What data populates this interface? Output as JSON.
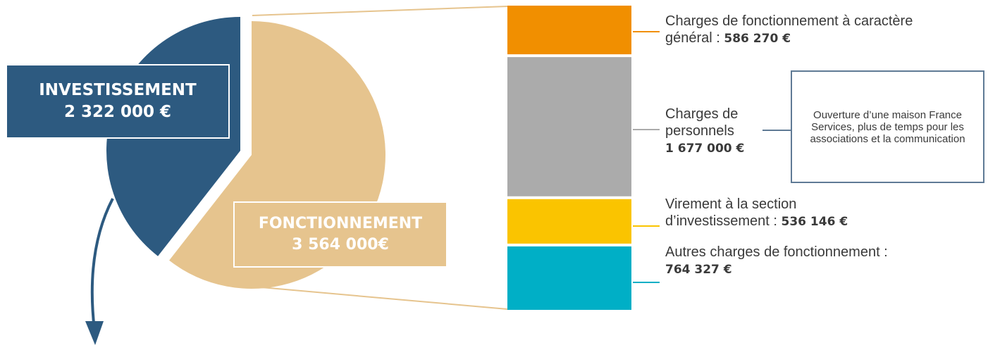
{
  "chart_data": {
    "type": "pie",
    "slices": [
      {
        "label": "INVESTISSEMENT",
        "value_text": "2 322 000 €",
        "value": 2322000,
        "color": "#2d5a80"
      },
      {
        "label": "FONCTIONNEMENT",
        "value_text": "3 564 000€",
        "value": 3564000,
        "color": "#e6c48e"
      }
    ],
    "breakdown": {
      "of": "FONCTIONNEMENT",
      "type": "stacked-bar",
      "segments": [
        {
          "text": "Charges de fonctionnement à caractère général : ",
          "value_text": "586 270 €",
          "value": 586270,
          "color": "#f18f00"
        },
        {
          "text": "Charges de personnels",
          "value_text": "1 677 000 €",
          "value": 1677000,
          "color": "#ababab"
        },
        {
          "text": "Virement à la section d’investissement : ",
          "value_text": "536 146 €",
          "value": 536146,
          "color": "#fac400"
        },
        {
          "text": "Autres charges de fonctionnement : ",
          "value_text": "764 327 €",
          "value": 764327,
          "color": "#00afc6"
        }
      ]
    },
    "annotation": "Ouverture d’une maison France Services, plus de temps pour les associations et la communication"
  }
}
